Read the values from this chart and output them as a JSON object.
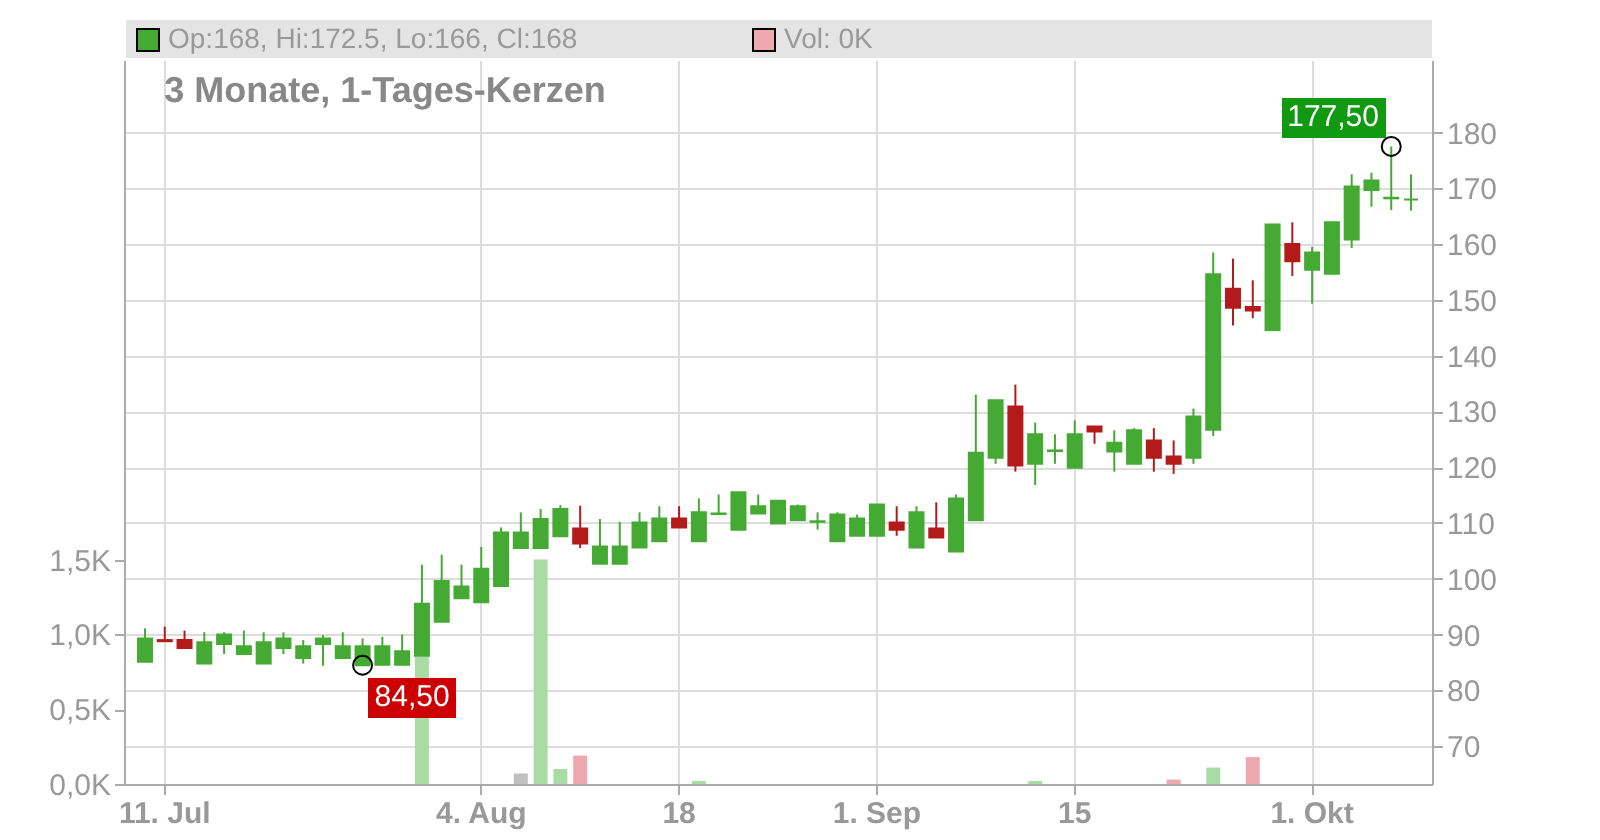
{
  "chart_data": {
    "type": "candlestick",
    "title": "3 Monate, 1-Tages-Kerzen",
    "categories": [
      null,
      "11. Jul",
      null,
      null,
      null,
      null,
      null,
      null,
      null,
      null,
      null,
      null,
      null,
      null,
      null,
      null,
      null,
      "4. Aug",
      null,
      null,
      null,
      null,
      null,
      null,
      null,
      null,
      null,
      "18",
      null,
      null,
      null,
      null,
      null,
      null,
      null,
      null,
      null,
      "1. Sep",
      null,
      null,
      null,
      null,
      null,
      null,
      null,
      null,
      null,
      "15",
      null,
      null,
      null,
      null,
      null,
      null,
      null,
      null,
      null,
      null,
      null,
      "1. Okt",
      null,
      null,
      null,
      null,
      null
    ],
    "ohlc": [
      [
        85.1,
        91.1,
        85.1,
        89.3
      ],
      [
        89.0,
        91.4,
        88.7,
        88.8
      ],
      [
        89.0,
        90.7,
        87.6,
        87.6
      ],
      [
        84.8,
        90.4,
        84.8,
        88.6
      ],
      [
        88.3,
        90.4,
        86.5,
        90.0
      ],
      [
        86.5,
        90.7,
        86.5,
        87.9
      ],
      [
        84.8,
        90.4,
        84.8,
        88.6
      ],
      [
        87.6,
        90.4,
        86.5,
        89.3
      ],
      [
        85.8,
        89.0,
        84.8,
        87.9
      ],
      [
        88.3,
        89.9,
        84.4,
        89.3
      ],
      [
        85.8,
        90.4,
        85.8,
        87.9
      ],
      [
        84.5,
        89.3,
        84.5,
        87.9
      ],
      [
        84.6,
        89.6,
        84.6,
        87.9
      ],
      [
        84.6,
        90.0,
        84.6,
        87.0
      ],
      [
        86.2,
        102.5,
        86.2,
        95.5
      ],
      [
        92.3,
        104.3,
        92.3,
        99.6
      ],
      [
        96.5,
        102.5,
        96.5,
        98.6
      ],
      [
        95.8,
        105.7,
        95.8,
        101.8
      ],
      [
        98.7,
        109.2,
        98.7,
        108.3
      ],
      [
        105.5,
        111.9,
        105.5,
        108.3
      ],
      [
        105.5,
        112.5,
        105.5,
        110.7
      ],
      [
        107.6,
        113.2,
        107.6,
        112.5
      ],
      [
        109.0,
        113.1,
        105.5,
        106.3
      ],
      [
        102.7,
        110.7,
        102.7,
        105.8
      ],
      [
        102.7,
        110.2,
        102.7,
        105.8
      ],
      [
        105.6,
        111.9,
        105.6,
        110.1
      ],
      [
        106.7,
        113.0,
        106.7,
        110.8
      ],
      [
        110.8,
        113.0,
        109.2,
        109.2
      ],
      [
        106.7,
        114.4,
        106.7,
        111.9
      ],
      [
        111.6,
        115.1,
        111.6,
        111.7
      ],
      [
        108.8,
        115.5,
        108.8,
        115.5
      ],
      [
        111.7,
        115.1,
        111.7,
        113.0
      ],
      [
        109.9,
        114.0,
        109.9,
        114.0
      ],
      [
        110.5,
        113.3,
        110.5,
        113.0
      ],
      [
        110.2,
        111.9,
        108.8,
        110.3
      ],
      [
        106.7,
        111.9,
        106.7,
        111.5
      ],
      [
        107.7,
        111.5,
        107.7,
        110.8
      ],
      [
        107.7,
        113.3,
        107.7,
        113.3
      ],
      [
        110.1,
        113.0,
        107.7,
        108.8
      ],
      [
        105.6,
        113.0,
        105.6,
        111.9
      ],
      [
        109.0,
        113.7,
        107.4,
        107.4
      ],
      [
        104.9,
        115.1,
        104.9,
        114.4
      ],
      [
        110.5,
        133.0,
        110.5,
        122.6
      ],
      [
        121.7,
        132.0,
        120.6,
        132.0
      ],
      [
        130.9,
        134.8,
        119.2,
        120.3
      ],
      [
        120.6,
        128.0,
        116.8,
        125.9
      ],
      [
        122.9,
        125.9,
        120.6,
        123.0
      ],
      [
        119.9,
        128.4,
        119.9,
        125.9
      ],
      [
        127.3,
        127.3,
        124.2,
        126.4
      ],
      [
        122.8,
        126.6,
        119.2,
        124.4
      ],
      [
        120.6,
        127.0,
        120.6,
        126.6
      ],
      [
        124.8,
        127.0,
        119.2,
        121.7
      ],
      [
        121.9,
        124.8,
        118.8,
        120.6
      ],
      [
        121.7,
        130.5,
        120.6,
        129.1
      ],
      [
        126.7,
        158.5,
        125.6,
        154.6
      ],
      [
        152.0,
        157.4,
        145.4,
        148.6
      ],
      [
        148.7,
        153.5,
        146.7,
        148.1
      ],
      [
        144.6,
        163.5,
        144.6,
        163.5
      ],
      [
        160.0,
        163.9,
        154.3,
        156.9
      ],
      [
        155.4,
        159.5,
        149.3,
        158.5
      ],
      [
        154.7,
        163.9,
        154.7,
        163.9
      ],
      [
        160.8,
        172.5,
        159.3,
        170.3
      ],
      [
        169.7,
        172.8,
        166.7,
        171.4
      ],
      [
        168.2,
        177.5,
        166.1,
        168.3
      ],
      [
        168,
        172.5,
        166,
        168
      ]
    ],
    "series": [
      {
        "type": "bar",
        "axis": "y2",
        "values": [
          0,
          0,
          0,
          0,
          0,
          0,
          0,
          0,
          0,
          0,
          0,
          0,
          0,
          0,
          0.85,
          0,
          0,
          0,
          0,
          0.07,
          1.5,
          0.1,
          0.19,
          0,
          0,
          0,
          0,
          0,
          0.02,
          0,
          0,
          0,
          0,
          0,
          0,
          0,
          0,
          0,
          0,
          0,
          0,
          0,
          0,
          0,
          0,
          0.02,
          0,
          0,
          0,
          0,
          0,
          0,
          0.03,
          0,
          0.11,
          0,
          0.18,
          0,
          0,
          0,
          0,
          0,
          0,
          0,
          0
        ],
        "colors": [
          "#a8dca4",
          "#eea8b0",
          "#eea8b0",
          "#a8dca4",
          "#a8dca4",
          "#a8dca4",
          "#a8dca4",
          "#a8dca4",
          "#a8dca4",
          "#a8dca4",
          "#a8dca4",
          "#a8dca4",
          "#a8dca4",
          "#a8dca4",
          "#a8dca4",
          "#a8dca4",
          "#a8dca4",
          "#a8dca4",
          "#a8dca4",
          "#c0c0c0",
          "#a8dca4",
          "#a8dca4",
          "#eea8b0",
          "#a8dca4",
          "#a8dca4",
          "#a8dca4",
          "#a8dca4",
          "#eea8b0",
          "#a8dca4",
          "#a8dca4",
          "#a8dca4",
          "#a8dca4",
          "#a8dca4",
          "#a8dca4",
          "#a8dca4",
          "#a8dca4",
          "#a8dca4",
          "#a8dca4",
          "#eea8b0",
          "#a8dca4",
          "#eea8b0",
          "#a8dca4",
          "#a8dca4",
          "#a8dca4",
          "#eea8b0",
          "#a8dca4",
          "#a8dca4",
          "#a8dca4",
          "#eea8b0",
          "#a8dca4",
          "#a8dca4",
          "#eea8b0",
          "#eea8b0",
          "#a8dca4",
          "#a8dca4",
          "#eea8b0",
          "#eea8b0",
          "#a8dca4",
          "#eea8b0",
          "#a8dca4",
          "#a8dca4",
          "#a8dca4",
          "#a8dca4",
          "#a8dca4",
          "#a8dca4"
        ]
      },
      {
        "type": "scatter",
        "marker": "circle",
        "color": "#000000",
        "values": [
          null,
          null,
          null,
          null,
          null,
          null,
          null,
          null,
          null,
          null,
          null,
          84.5,
          null,
          null,
          null,
          null,
          null,
          null,
          null,
          null,
          null,
          null,
          null,
          null,
          null,
          null,
          null,
          null,
          null,
          null,
          null,
          null,
          null,
          null,
          null,
          null,
          null,
          null,
          null,
          null,
          null,
          null,
          null,
          null,
          null,
          null,
          null,
          null,
          null,
          null,
          null,
          null,
          null,
          null,
          null,
          null,
          null,
          null,
          null,
          null,
          null,
          null,
          null,
          177.5,
          null
        ],
        "value_labels": [
          null,
          null,
          null,
          null,
          null,
          null,
          null,
          null,
          null,
          null,
          null,
          "84,50",
          null,
          null,
          null,
          null,
          null,
          null,
          null,
          null,
          null,
          null,
          null,
          null,
          null,
          null,
          null,
          null,
          null,
          null,
          null,
          null,
          null,
          null,
          null,
          null,
          null,
          null,
          null,
          null,
          null,
          null,
          null,
          null,
          null,
          null,
          null,
          null,
          null,
          null,
          null,
          null,
          null,
          null,
          null,
          null,
          null,
          null,
          null,
          null,
          null,
          null,
          null,
          "177,50",
          null
        ]
      }
    ],
    "ylim": [
      63.2,
      193
    ],
    "yticks": [
      70,
      80,
      90,
      100,
      110,
      120,
      130,
      140,
      150,
      160,
      170,
      180
    ],
    "y2lim": [
      0,
      4.84
    ],
    "y2ticks": [
      {
        "value": 0,
        "label": "0,0K"
      },
      {
        "value": 0.5,
        "label": "0,5K"
      },
      {
        "value": 1,
        "label": "1,0K"
      },
      {
        "value": 1.5,
        "label": "1,5K"
      }
    ],
    "grid": true,
    "annotations": [
      "Op:168, Hi:172.5, Lo:166, Cl:168",
      "Vol: 0K"
    ]
  }
}
